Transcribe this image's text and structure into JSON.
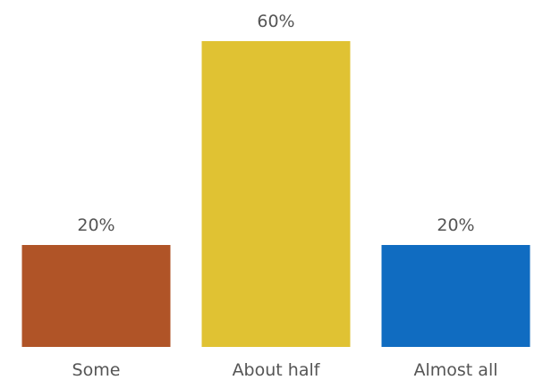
{
  "chart_data": {
    "type": "bar",
    "categories": [
      "Some",
      "About half",
      "Almost all"
    ],
    "values": [
      20,
      60,
      20
    ],
    "data_labels": [
      "20%",
      "60%",
      "20%"
    ],
    "colors": [
      "#b05427",
      "#e0c233",
      "#106cc1"
    ],
    "ylim": [
      0,
      60
    ],
    "grid": false,
    "legend": "none",
    "axes_visible": false
  }
}
